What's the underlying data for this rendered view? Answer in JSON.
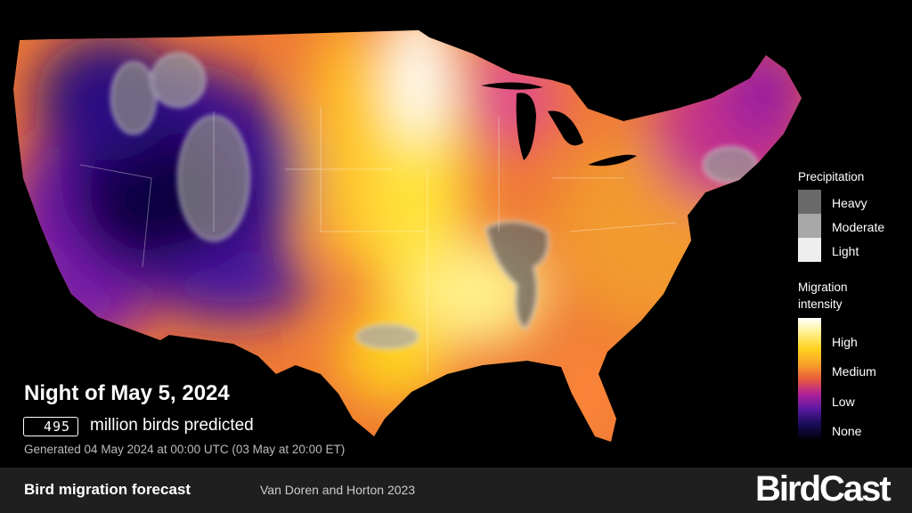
{
  "overlay": {
    "title": "Night of May 5, 2024",
    "count": 495,
    "count_label": "million birds predicted",
    "generated": "Generated 04 May 2024 at 00:00 UTC (03 May at 20:00 ET)"
  },
  "legend": {
    "precipitation": {
      "title": "Precipitation",
      "levels": [
        "Heavy",
        "Moderate",
        "Light"
      ]
    },
    "intensity": {
      "title": "Migration intensity",
      "levels": [
        "High",
        "Medium",
        "Low",
        "None"
      ]
    }
  },
  "footer": {
    "title": "Bird migration forecast",
    "credit": "Van Doren and Horton 2023",
    "brand": "BirdCast"
  }
}
